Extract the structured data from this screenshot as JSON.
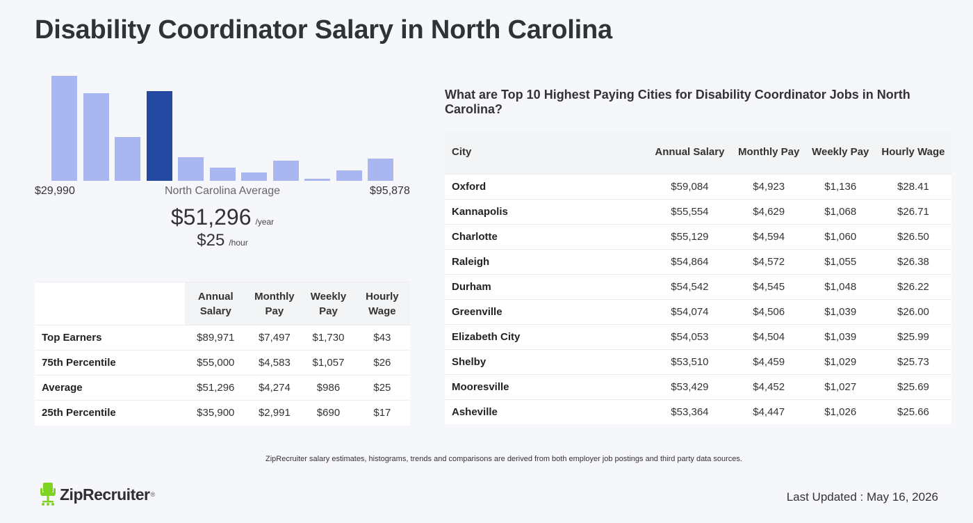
{
  "page": {
    "title": "Disability Coordinator Salary in North Carolina"
  },
  "histogram": {
    "bars": [
      {
        "value": 0.89,
        "highlight": false
      },
      {
        "value": 0.74,
        "highlight": false
      },
      {
        "value": 0.37,
        "highlight": false
      },
      {
        "value": 0.76,
        "highlight": true
      },
      {
        "value": 0.2,
        "highlight": false
      },
      {
        "value": 0.11,
        "highlight": false
      },
      {
        "value": 0.07,
        "highlight": false
      },
      {
        "value": 0.17,
        "highlight": false
      },
      {
        "value": 0.02,
        "highlight": false
      },
      {
        "value": 0.09,
        "highlight": false
      },
      {
        "value": 0.19,
        "highlight": false
      }
    ],
    "min_label": "$29,990",
    "max_label": "$95,878",
    "avg_label": "North Carolina Average",
    "bar_color": "#aab6f0",
    "highlight_color": "#2548a3"
  },
  "average": {
    "yearly": "$51,296",
    "yearly_unit": "/year",
    "hourly": "$25",
    "hourly_unit": "/hour"
  },
  "percentile_table": {
    "headers": [
      "Annual Salary",
      "Monthly Pay",
      "Weekly Pay",
      "Hourly Wage"
    ],
    "rows": [
      {
        "label": "Top Earners",
        "values": [
          "$89,971",
          "$7,497",
          "$1,730",
          "$43"
        ]
      },
      {
        "label": "75th Percentile",
        "values": [
          "$55,000",
          "$4,583",
          "$1,057",
          "$26"
        ]
      },
      {
        "label": "Average",
        "values": [
          "$51,296",
          "$4,274",
          "$986",
          "$25"
        ]
      },
      {
        "label": "25th Percentile",
        "values": [
          "$35,900",
          "$2,991",
          "$690",
          "$17"
        ]
      }
    ]
  },
  "cities": {
    "title": "What are Top 10 Highest Paying Cities for Disability Coordinator Jobs in North Carolina?",
    "headers": [
      "City",
      "Annual Salary",
      "Monthly Pay",
      "Weekly Pay",
      "Hourly Wage"
    ],
    "rows": [
      {
        "city": "Oxford",
        "values": [
          "$59,084",
          "$4,923",
          "$1,136",
          "$28.41"
        ]
      },
      {
        "city": "Kannapolis",
        "values": [
          "$55,554",
          "$4,629",
          "$1,068",
          "$26.71"
        ]
      },
      {
        "city": "Charlotte",
        "values": [
          "$55,129",
          "$4,594",
          "$1,060",
          "$26.50"
        ]
      },
      {
        "city": "Raleigh",
        "values": [
          "$54,864",
          "$4,572",
          "$1,055",
          "$26.38"
        ]
      },
      {
        "city": "Durham",
        "values": [
          "$54,542",
          "$4,545",
          "$1,048",
          "$26.22"
        ]
      },
      {
        "city": "Greenville",
        "values": [
          "$54,074",
          "$4,506",
          "$1,039",
          "$26.00"
        ]
      },
      {
        "city": "Elizabeth City",
        "values": [
          "$54,053",
          "$4,504",
          "$1,039",
          "$25.99"
        ]
      },
      {
        "city": "Shelby",
        "values": [
          "$53,510",
          "$4,459",
          "$1,029",
          "$25.73"
        ]
      },
      {
        "city": "Mooresville",
        "values": [
          "$53,429",
          "$4,452",
          "$1,027",
          "$25.69"
        ]
      },
      {
        "city": "Asheville",
        "values": [
          "$53,364",
          "$4,447",
          "$1,026",
          "$25.66"
        ]
      }
    ]
  },
  "footer": {
    "disclaimer": "ZipRecruiter salary estimates, histograms, trends and comparisons are derived from both employer job postings and third party data sources.",
    "logo_text": "ZipRecruiter",
    "logo_tm": "®",
    "logo_icon": "chair-mascot-icon",
    "logo_color": "#7ed321",
    "last_updated": "Last Updated : May 16, 2026"
  }
}
